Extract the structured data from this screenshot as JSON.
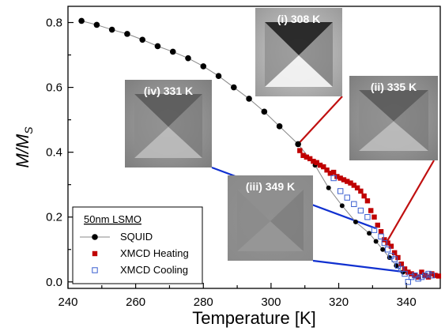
{
  "chart_data": {
    "type": "scatter",
    "xlabel": "Temperature [K]",
    "ylabel_main": "M/M",
    "ylabel_sub": "S",
    "xlim": [
      240,
      350
    ],
    "ylim": [
      -0.02,
      0.85
    ],
    "xticks": [
      240,
      260,
      280,
      300,
      320,
      340
    ],
    "yticks": [
      0.0,
      0.2,
      0.4,
      0.6,
      0.8
    ],
    "ytick_labels": [
      "0.0",
      "0.2",
      "0.4",
      "0.6",
      "0.8"
    ],
    "grid": false,
    "legend": {
      "position": "bottom-left",
      "title": "50nm LSMO",
      "entries": [
        "SQUID",
        "XMCD Heating",
        "XMCD Cooling"
      ]
    },
    "series": [
      {
        "name": "SQUID",
        "style": "black-filled-circle-with-line",
        "color": "#000000",
        "x": [
          244,
          248.5,
          253,
          257.5,
          262,
          266.5,
          271,
          275.5,
          280,
          284.5,
          289,
          293.5,
          298,
          302.5,
          308,
          313,
          317,
          321,
          325,
          329,
          331,
          333,
          335,
          337,
          339
        ],
        "y": [
          0.805,
          0.793,
          0.778,
          0.765,
          0.747,
          0.727,
          0.71,
          0.69,
          0.665,
          0.635,
          0.6,
          0.565,
          0.525,
          0.48,
          0.425,
          0.36,
          0.29,
          0.235,
          0.185,
          0.15,
          0.125,
          0.1,
          0.075,
          0.05,
          0.03
        ]
      },
      {
        "name": "XMCD Heating",
        "style": "red-filled-square",
        "color": "#c00000",
        "x": [
          308.5,
          309.5,
          310.5,
          311.5,
          312.5,
          313.5,
          314.5,
          315.5,
          316.5,
          317.5,
          318.5,
          319.5,
          320.5,
          321.5,
          322.5,
          323.5,
          324.5,
          325.5,
          326.5,
          327.5,
          328.5,
          329.5,
          330.5,
          331.5,
          332.5,
          333.5,
          334.5,
          335.5,
          336.5,
          337.5,
          338.5,
          339.5,
          340.5,
          341.5,
          342.5,
          343.5,
          344.5,
          345.5,
          346.5,
          347.5,
          348.5,
          349.5
        ],
        "y": [
          0.405,
          0.39,
          0.385,
          0.38,
          0.372,
          0.368,
          0.36,
          0.355,
          0.345,
          0.335,
          0.338,
          0.325,
          0.32,
          0.315,
          0.31,
          0.305,
          0.298,
          0.29,
          0.28,
          0.265,
          0.25,
          0.22,
          0.2,
          0.175,
          0.155,
          0.13,
          0.12,
          0.11,
          0.09,
          0.075,
          0.055,
          0.04,
          0.03,
          0.025,
          0.02,
          0.015,
          0.03,
          0.02,
          0.015,
          0.025,
          0.02,
          0.018
        ]
      },
      {
        "name": "XMCD Cooling",
        "style": "blue-open-square",
        "color": "#3a5fd0",
        "x": [
          318.5,
          320.5,
          322.5,
          324.5,
          326.5,
          328.5,
          330.5,
          332.5,
          333.5,
          334.5,
          335.5,
          336.5,
          337.5,
          338.5,
          339.5,
          340.5,
          341.5,
          342.5,
          343.5,
          344.5,
          345.5,
          346.5,
          347.5
        ],
        "y": [
          0.32,
          0.28,
          0.26,
          0.24,
          0.22,
          0.2,
          0.16,
          0.14,
          0.12,
          0.1,
          0.08,
          0.07,
          0.05,
          0.04,
          0.025,
          0.0,
          0.015,
          0.02,
          0.01,
          0.015,
          0.02,
          0.025,
          0.02
        ]
      }
    ],
    "insets": [
      {
        "label": "(i) 308 K",
        "style": "high-contrast",
        "anchor": [
          308,
          0.425
        ],
        "link_color": "#c01010"
      },
      {
        "label": "(ii) 335 K",
        "style": "medium-contrast",
        "anchor": [
          334,
          0.12
        ],
        "link_color": "#c01010"
      },
      {
        "label": "(iii) 349 K",
        "style": "uniform",
        "anchor": [
          340,
          0.03
        ],
        "link_color": "#1030d0"
      },
      {
        "label": "(iv) 331 K",
        "style": "medium-contrast",
        "anchor": [
          331,
          0.165
        ],
        "link_color": "#1030d0"
      }
    ]
  }
}
